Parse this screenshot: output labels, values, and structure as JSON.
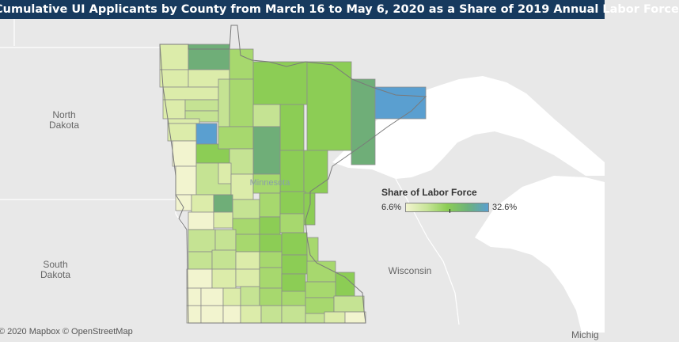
{
  "title": "Cumulative UI Applicants by County from March 16 to May 6, 2020 as a Share of 2019 Annual Labor Force",
  "map_labels": {
    "north_dakota": "North\nDakota",
    "south_dakota": "South\nDakota",
    "wisconsin": "Wisconsin",
    "michigan": "Michig",
    "minnesota": "Minnesota"
  },
  "legend": {
    "title": "Share of Labor Force",
    "min_label": "6.6%",
    "max_label": "32.6%",
    "min_value": 6.6,
    "max_value": 32.6,
    "color_stops": [
      "#f2f4cf",
      "#c9e59a",
      "#8ccd55",
      "#6cb27a",
      "#5a9fd0"
    ]
  },
  "attribution": "© 2020 Mapbox  © OpenStreetMap",
  "colors": {
    "title_bar": "#173a5e",
    "water": "#ffffff",
    "land": "#e8e8e8",
    "county_border": "#8a8a8a"
  }
}
